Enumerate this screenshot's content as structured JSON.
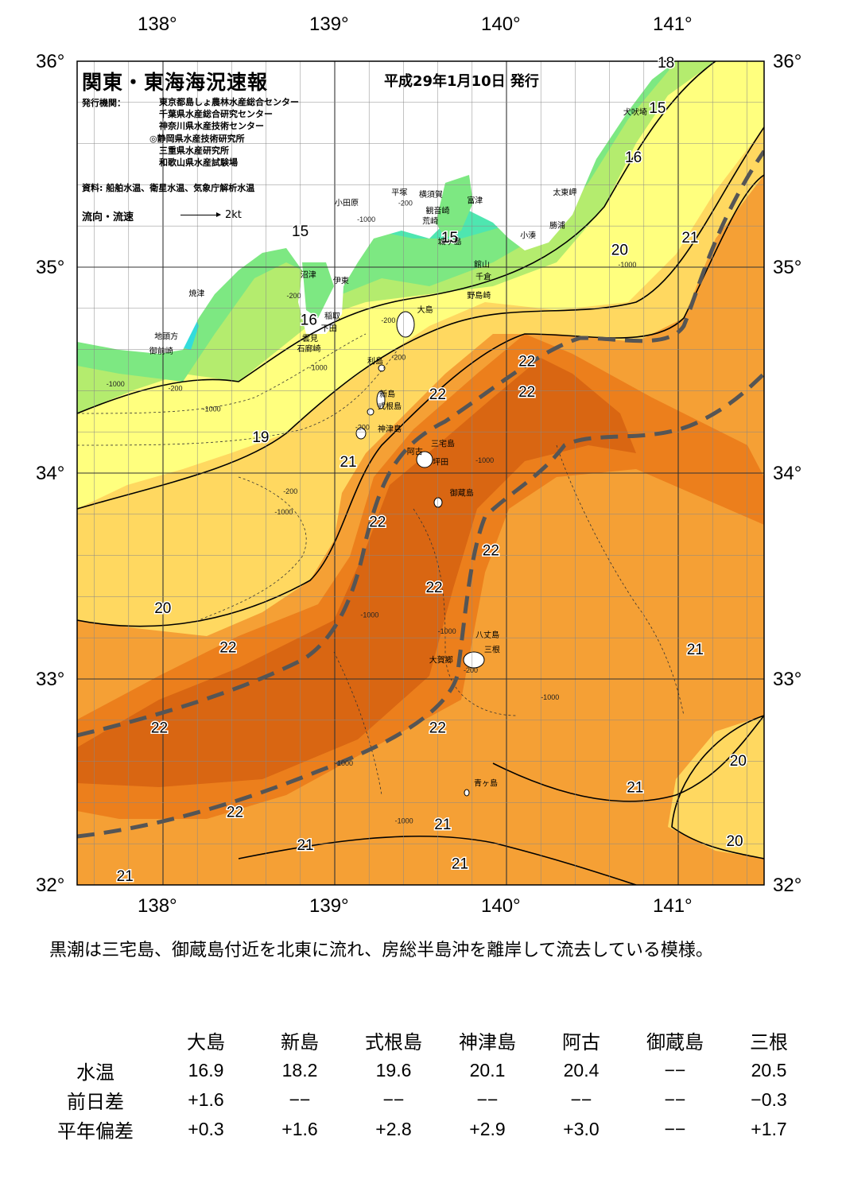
{
  "map": {
    "title": "関東・東海海況速報",
    "issued": "平成29年1月10日 発行",
    "agency_label": "発行機関：",
    "agencies": [
      "東京都島しょ農林水産総合センター",
      "千葉県水産総合研究センター",
      "神奈川県水産技術センター",
      "◎静岡県水産技術研究所",
      "三重県水産研究所",
      "和歌山県水産試験場"
    ],
    "source": "資料: 船舶水温、衛星水温、気象庁解析水温",
    "flow_label": "流向・流速",
    "flow_unit": "2kt",
    "lon_labels": [
      "138°",
      "139°",
      "140°",
      "141°"
    ],
    "lat_labels": [
      "36°",
      "35°",
      "34°",
      "33°",
      "32°"
    ],
    "colors": {
      "land": "#ffffff",
      "sea_15": "#33dcdc",
      "sea_16": "#4ee6b0",
      "sea_17": "#7de882",
      "sea_18": "#b4ec6e",
      "sea_19": "#ffff7e",
      "sea_20": "#ffd860",
      "sea_21": "#f5a035",
      "sea_22": "#ec7f1c",
      "sea_23": "#d96612",
      "kuroshio_axis": "#555555"
    },
    "isotherm_labels": [
      {
        "text": "18",
        "lon": 140.88,
        "lat": 35.97
      },
      {
        "text": "15",
        "lon": 140.83,
        "lat": 35.75
      },
      {
        "text": "16",
        "lon": 140.69,
        "lat": 35.51
      },
      {
        "text": "15",
        "lon": 138.75,
        "lat": 35.15
      },
      {
        "text": "15",
        "lon": 139.62,
        "lat": 35.12
      },
      {
        "text": "16",
        "lon": 138.8,
        "lat": 34.72
      },
      {
        "text": "20",
        "lon": 140.61,
        "lat": 35.06
      },
      {
        "text": "21",
        "lon": 141.02,
        "lat": 35.12
      },
      {
        "text": "22",
        "lon": 140.07,
        "lat": 34.52
      },
      {
        "text": "22",
        "lon": 140.07,
        "lat": 34.37
      },
      {
        "text": "22",
        "lon": 139.55,
        "lat": 34.36
      },
      {
        "text": "19",
        "lon": 138.52,
        "lat": 34.15
      },
      {
        "text": "21",
        "lon": 139.03,
        "lat": 34.03
      },
      {
        "text": "22",
        "lon": 139.2,
        "lat": 33.74
      },
      {
        "text": "22",
        "lon": 139.86,
        "lat": 33.6
      },
      {
        "text": "22",
        "lon": 139.53,
        "lat": 33.42
      },
      {
        "text": "20",
        "lon": 137.95,
        "lat": 33.32
      },
      {
        "text": "22",
        "lon": 138.33,
        "lat": 33.13
      },
      {
        "text": "21",
        "lon": 141.05,
        "lat": 33.12
      },
      {
        "text": "22",
        "lon": 137.93,
        "lat": 32.74
      },
      {
        "text": "22",
        "lon": 139.55,
        "lat": 32.74
      },
      {
        "text": "20",
        "lon": 141.3,
        "lat": 32.58
      },
      {
        "text": "21",
        "lon": 140.7,
        "lat": 32.45
      },
      {
        "text": "22",
        "lon": 138.37,
        "lat": 32.33
      },
      {
        "text": "21",
        "lon": 139.58,
        "lat": 32.27
      },
      {
        "text": "21",
        "lon": 138.78,
        "lat": 32.17
      },
      {
        "text": "20",
        "lon": 141.28,
        "lat": 32.19
      },
      {
        "text": "21",
        "lon": 139.68,
        "lat": 32.08
      },
      {
        "text": "21",
        "lon": 137.73,
        "lat": 32.02
      }
    ],
    "place_labels": [
      {
        "text": "犬吠埼",
        "lon": 140.68,
        "lat": 35.74
      },
      {
        "text": "太東岬",
        "lon": 140.27,
        "lat": 35.35
      },
      {
        "text": "勝浦",
        "lon": 140.25,
        "lat": 35.19
      },
      {
        "text": "小湊",
        "lon": 140.08,
        "lat": 35.14
      },
      {
        "text": "富津",
        "lon": 139.77,
        "lat": 35.31
      },
      {
        "text": "観音崎",
        "lon": 139.53,
        "lat": 35.26
      },
      {
        "text": "横須賀",
        "lon": 139.49,
        "lat": 35.34
      },
      {
        "text": "平塚",
        "lon": 139.33,
        "lat": 35.35
      },
      {
        "text": "小田原",
        "lon": 139.0,
        "lat": 35.3
      },
      {
        "text": "荒崎",
        "lon": 139.51,
        "lat": 35.21
      },
      {
        "text": "城ヶ島",
        "lon": 139.6,
        "lat": 35.11
      },
      {
        "text": "館山",
        "lon": 139.81,
        "lat": 35.0
      },
      {
        "text": "千倉",
        "lon": 139.82,
        "lat": 34.94
      },
      {
        "text": "野島崎",
        "lon": 139.77,
        "lat": 34.85
      },
      {
        "text": "沼津",
        "lon": 138.8,
        "lat": 34.95
      },
      {
        "text": "伊東",
        "lon": 138.99,
        "lat": 34.92
      },
      {
        "text": "焼津",
        "lon": 138.15,
        "lat": 34.86
      },
      {
        "text": "稲取",
        "lon": 138.94,
        "lat": 34.75
      },
      {
        "text": "下田",
        "lon": 138.92,
        "lat": 34.69
      },
      {
        "text": "雲見",
        "lon": 138.81,
        "lat": 34.64
      },
      {
        "text": "石廊崎",
        "lon": 138.78,
        "lat": 34.59
      },
      {
        "text": "地頭方",
        "lon": 137.95,
        "lat": 34.65
      },
      {
        "text": "御前崎",
        "lon": 137.92,
        "lat": 34.58
      },
      {
        "text": "大島",
        "lon": 139.48,
        "lat": 34.78
      },
      {
        "text": "利島",
        "lon": 139.19,
        "lat": 34.53
      },
      {
        "text": "新島",
        "lon": 139.26,
        "lat": 34.37
      },
      {
        "text": "式根島",
        "lon": 139.25,
        "lat": 34.31
      },
      {
        "text": "神津島",
        "lon": 139.25,
        "lat": 34.2
      },
      {
        "text": "三宅島",
        "lon": 139.56,
        "lat": 34.13
      },
      {
        "text": "阿古",
        "lon": 139.42,
        "lat": 34.09
      },
      {
        "text": "坪田",
        "lon": 139.57,
        "lat": 34.04
      },
      {
        "text": "御蔵島",
        "lon": 139.67,
        "lat": 33.89
      },
      {
        "text": "八丈島",
        "lon": 139.82,
        "lat": 33.2
      },
      {
        "text": "三根",
        "lon": 139.87,
        "lat": 33.13
      },
      {
        "text": "大賀郷",
        "lon": 139.55,
        "lat": 33.08
      },
      {
        "text": "青ヶ島",
        "lon": 139.81,
        "lat": 32.48
      }
    ],
    "depth_labels": [
      {
        "text": "-200",
        "lon": 139.37,
        "lat": 35.3
      },
      {
        "text": "-1000",
        "lon": 139.13,
        "lat": 35.22
      },
      {
        "text": "-200",
        "lon": 138.72,
        "lat": 34.85
      },
      {
        "text": "-200",
        "lon": 139.27,
        "lat": 34.73
      },
      {
        "text": "-200",
        "lon": 139.33,
        "lat": 34.55
      },
      {
        "text": "-1000",
        "lon": 140.65,
        "lat": 35.0
      },
      {
        "text": "-1000",
        "lon": 138.85,
        "lat": 34.5
      },
      {
        "text": "-1000",
        "lon": 137.67,
        "lat": 34.42
      },
      {
        "text": "-200",
        "lon": 138.03,
        "lat": 34.4
      },
      {
        "text": "-1000",
        "lon": 138.23,
        "lat": 34.3
      },
      {
        "text": "-200",
        "lon": 139.12,
        "lat": 34.21
      },
      {
        "text": "-1000",
        "lon": 139.82,
        "lat": 34.05
      },
      {
        "text": "-200",
        "lon": 138.7,
        "lat": 33.9
      },
      {
        "text": "-1000",
        "lon": 138.65,
        "lat": 33.8
      },
      {
        "text": "-1000",
        "lon": 139.15,
        "lat": 33.3
      },
      {
        "text": "-1000",
        "lon": 139.6,
        "lat": 33.22
      },
      {
        "text": "-200",
        "lon": 139.75,
        "lat": 33.03
      },
      {
        "text": "-1000",
        "lon": 140.2,
        "lat": 32.9
      },
      {
        "text": "-1000",
        "lon": 139.0,
        "lat": 32.58
      },
      {
        "text": "-1000",
        "lon": 139.35,
        "lat": 32.3
      }
    ]
  },
  "summary": "黒潮は三宅島、御蔵島付近を北東に流れ、房総半島沖を離岸して流去している模様。",
  "table": {
    "columns": [
      "大島",
      "新島",
      "式根島",
      "神津島",
      "阿古",
      "御蔵島",
      "三根"
    ],
    "rows": [
      {
        "label": "水温",
        "values": [
          "16.9",
          "18.2",
          "19.6",
          "20.1",
          "20.4",
          "−−",
          "20.5"
        ]
      },
      {
        "label": "前日差",
        "values": [
          "+1.6",
          "−−",
          "−−",
          "−−",
          "−−",
          "−−",
          "−0.3"
        ]
      },
      {
        "label": "平年偏差",
        "values": [
          "+0.3",
          "+1.6",
          "+2.8",
          "+2.9",
          "+3.0",
          "−−",
          "+1.7"
        ]
      }
    ]
  }
}
